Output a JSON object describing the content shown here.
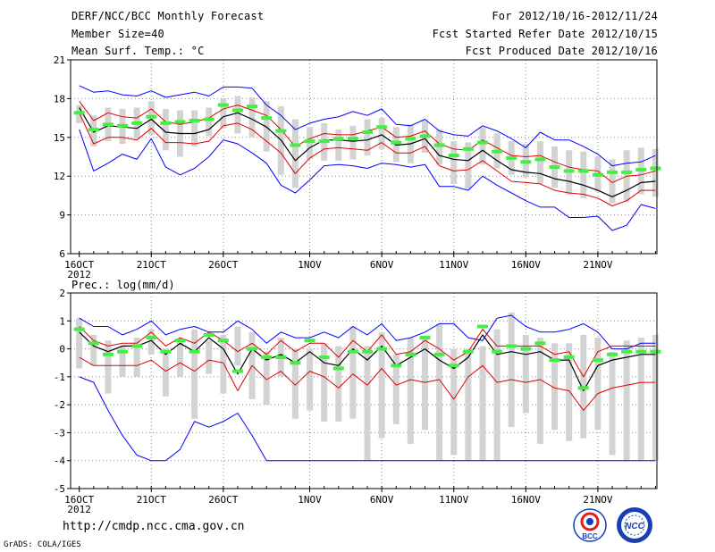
{
  "header": {
    "title": "DERF/NCC/BCC Monthly Forecast",
    "member_size": "Member Size=40",
    "variable": "Mean Surf. Temp.: °C",
    "period": "For 2012/10/16-2012/11/24",
    "start_date": "Fcst Started Refer Date 2012/10/15",
    "produced_date": "Fcst Produced Date 2012/10/16"
  },
  "footer": {
    "url": "http://cmdp.ncc.cma.gov.cn",
    "credit": "GrADS: COLA/IGES",
    "logo_left": "BCC",
    "logo_right": "NCC"
  },
  "colors": {
    "box": "#d3d3d3",
    "median": "#44ee44",
    "mean": "#000000",
    "std": "#e00000",
    "envelope": "#0000ff",
    "grid": "#888888"
  },
  "chart_data": [
    {
      "type": "box",
      "title": "Mean Surf. Temp.: °C",
      "ylabel": "°C",
      "ylim": [
        6,
        21
      ],
      "yticks": [
        6,
        9,
        12,
        15,
        18,
        21
      ],
      "xticks": [
        {
          "day": 0,
          "label": "16OCT"
        },
        {
          "day": 5,
          "label": "21OCT"
        },
        {
          "day": 10,
          "label": "26OCT"
        },
        {
          "day": 16,
          "label": "1NOV"
        },
        {
          "day": 21,
          "label": "6NOV"
        },
        {
          "day": 26,
          "label": "11NOV"
        },
        {
          "day": 31,
          "label": "16NOV"
        },
        {
          "day": 36,
          "label": "21NOV"
        }
      ],
      "year_label": "2012",
      "xlim": [
        -0.6,
        40.1
      ],
      "max": [
        19.0,
        18.5,
        18.6,
        18.3,
        18.2,
        18.6,
        18.1,
        18.3,
        18.5,
        18.2,
        18.9,
        18.9,
        18.8,
        17.5,
        16.7,
        15.6,
        16.1,
        16.4,
        16.6,
        17.0,
        16.7,
        17.2,
        16.0,
        15.9,
        16.4,
        15.5,
        15.2,
        15.1,
        15.9,
        15.5,
        14.9,
        14.2,
        15.4,
        14.8,
        14.8,
        14.3,
        13.7,
        12.8,
        13.0,
        13.1,
        13.6
      ],
      "p90": [
        17.5,
        16.7,
        17.3,
        17.2,
        17.3,
        17.8,
        17.2,
        17.1,
        17.1,
        17.3,
        18.0,
        18.2,
        18.1,
        17.8,
        17.4,
        16.4,
        15.8,
        16.1,
        15.6,
        15.9,
        16.4,
        16.5,
        15.8,
        16.0,
        16.3,
        15.6,
        14.7,
        14.6,
        15.8,
        15.3,
        14.7,
        14.5,
        14.7,
        14.3,
        14.0,
        13.9,
        13.5,
        13.3,
        14.0,
        14.2,
        14.1
      ],
      "p10": [
        16.1,
        14.3,
        14.7,
        14.5,
        14.9,
        15.2,
        14.0,
        13.5,
        14.3,
        15.1,
        15.7,
        15.3,
        15.0,
        13.9,
        12.1,
        11.1,
        13.3,
        13.2,
        13.2,
        13.3,
        13.6,
        14.1,
        13.1,
        13.0,
        13.8,
        12.9,
        11.4,
        11.0,
        12.9,
        12.6,
        12.1,
        11.9,
        11.4,
        11.1,
        10.6,
        10.3,
        10.8,
        9.9,
        10.0,
        10.6,
        10.4
      ],
      "p50": [
        16.9,
        15.6,
        16.0,
        15.9,
        16.1,
        16.6,
        16.1,
        16.2,
        16.3,
        16.4,
        17.5,
        17.1,
        17.4,
        16.5,
        15.5,
        14.4,
        14.7,
        14.7,
        14.9,
        14.9,
        15.4,
        15.8,
        14.6,
        14.9,
        15.1,
        14.4,
        13.6,
        14.1,
        14.6,
        13.9,
        13.4,
        13.1,
        13.3,
        12.7,
        12.4,
        12.4,
        12.1,
        12.3,
        12.3,
        12.5,
        12.6
      ],
      "plus_std": [
        17.8,
        16.3,
        16.9,
        16.6,
        16.5,
        17.2,
        16.2,
        16.0,
        16.2,
        16.5,
        17.2,
        17.5,
        17.1,
        16.7,
        15.6,
        14.3,
        14.9,
        15.3,
        15.2,
        15.2,
        15.5,
        15.8,
        15.0,
        15.1,
        15.5,
        14.5,
        14.1,
        14.0,
        14.8,
        14.2,
        13.6,
        13.5,
        13.6,
        13.1,
        12.7,
        12.5,
        12.4,
        11.5,
        12.0,
        12.1,
        12.4
      ],
      "mean": [
        17.3,
        15.4,
        15.9,
        15.8,
        15.7,
        16.4,
        15.4,
        15.3,
        15.3,
        15.6,
        16.6,
        16.9,
        16.4,
        15.8,
        14.8,
        13.2,
        14.2,
        14.8,
        14.8,
        14.7,
        14.8,
        15.2,
        14.4,
        14.5,
        14.9,
        13.6,
        13.3,
        13.2,
        14.0,
        13.2,
        12.5,
        12.3,
        12.2,
        11.8,
        11.6,
        11.3,
        10.9,
        10.4,
        10.9,
        11.5,
        11.6
      ],
      "minus_std": [
        16.9,
        14.5,
        15.0,
        15.0,
        14.8,
        15.7,
        14.6,
        14.6,
        14.5,
        14.7,
        15.9,
        16.1,
        15.6,
        14.7,
        13.8,
        12.2,
        13.4,
        14.1,
        14.2,
        14.1,
        14.0,
        14.6,
        13.8,
        13.8,
        14.3,
        12.8,
        12.4,
        12.5,
        13.2,
        12.4,
        11.6,
        11.5,
        11.4,
        10.9,
        10.7,
        10.6,
        10.3,
        9.7,
        10.1,
        10.9,
        10.9
      ],
      "min": [
        15.6,
        12.4,
        13.0,
        13.7,
        13.3,
        14.9,
        12.7,
        12.1,
        12.6,
        13.5,
        14.8,
        14.5,
        13.8,
        13.0,
        11.3,
        10.7,
        11.7,
        12.8,
        12.9,
        12.8,
        12.6,
        13.0,
        12.9,
        12.7,
        12.9,
        11.2,
        11.2,
        10.9,
        12.0,
        11.3,
        10.7,
        10.1,
        9.6,
        9.6,
        8.8,
        8.8,
        8.9,
        7.8,
        8.2,
        9.8,
        9.5
      ]
    },
    {
      "type": "box",
      "title": "Prec.: log(mm/d)",
      "ylabel": "log(mm/d)",
      "ylim": [
        -5,
        2
      ],
      "yticks": [
        -5,
        -4,
        -3,
        -2,
        -1,
        0,
        1,
        2
      ],
      "xticks": [
        {
          "day": 0,
          "label": "16OCT"
        },
        {
          "day": 5,
          "label": "21OCT"
        },
        {
          "day": 10,
          "label": "26OCT"
        },
        {
          "day": 16,
          "label": "1NOV"
        },
        {
          "day": 21,
          "label": "6NOV"
        },
        {
          "day": 26,
          "label": "11NOV"
        },
        {
          "day": 31,
          "label": "16NOV"
        },
        {
          "day": 36,
          "label": "21NOV"
        }
      ],
      "year_label": "2012",
      "xlim": [
        -0.6,
        40.1
      ],
      "max": [
        1.1,
        0.8,
        0.8,
        0.5,
        0.7,
        1.0,
        0.5,
        0.7,
        0.8,
        0.6,
        0.6,
        1.0,
        0.7,
        0.2,
        0.6,
        0.4,
        0.4,
        0.6,
        0.4,
        0.8,
        0.5,
        0.9,
        0.3,
        0.4,
        0.6,
        0.9,
        0.9,
        0.4,
        0.3,
        1.1,
        1.2,
        0.8,
        0.6,
        0.6,
        0.7,
        0.9,
        0.6,
        0.0,
        0.0,
        0.2,
        0.2
      ],
      "p90": [
        1.1,
        0.5,
        0.3,
        0.1,
        0.4,
        0.7,
        0.0,
        0.3,
        0.7,
        0.3,
        0.5,
        0.8,
        0.6,
        -0.1,
        0.4,
        0.0,
        0.0,
        0.2,
        0.1,
        0.8,
        0.1,
        0.6,
        -0.2,
        0.4,
        0.4,
        0.9,
        0.0,
        0.0,
        0.1,
        0.7,
        1.3,
        0.5,
        0.4,
        0.2,
        0.2,
        0.5,
        0.4,
        -0.1,
        0.3,
        0.4,
        0.5
      ],
      "p10": [
        -0.7,
        -0.6,
        -1.6,
        -1.0,
        -1.0,
        -0.2,
        -1.7,
        -1.0,
        -2.5,
        -0.9,
        -1.6,
        -0.6,
        -1.8,
        -2.0,
        -1.0,
        -2.5,
        -2.2,
        -2.6,
        -2.6,
        -2.5,
        -4.0,
        -3.2,
        -2.7,
        -3.4,
        -2.9,
        -4.0,
        -3.8,
        -4.0,
        -4.0,
        -4.0,
        -2.8,
        -2.3,
        -3.4,
        -2.9,
        -3.3,
        -3.2,
        -2.9,
        -3.8,
        -4.0,
        -4.0,
        -4.0
      ],
      "p50": [
        0.7,
        0.2,
        -0.2,
        -0.1,
        0.1,
        0.4,
        -0.1,
        0.3,
        -0.1,
        0.5,
        0.3,
        -0.8,
        0.0,
        -0.3,
        -0.3,
        -0.5,
        0.3,
        -0.3,
        -0.7,
        -0.1,
        -0.1,
        0.0,
        -0.6,
        -0.2,
        0.4,
        -0.2,
        -0.6,
        -0.1,
        0.8,
        -0.1,
        0.1,
        0.0,
        0.2,
        -0.4,
        -0.3,
        -1.4,
        -0.4,
        -0.2,
        -0.1,
        -0.1,
        -0.1
      ],
      "plus_std": [
        0.8,
        0.3,
        0.1,
        0.2,
        0.2,
        0.6,
        0.1,
        0.4,
        0.2,
        0.6,
        0.3,
        -0.1,
        0.2,
        -0.2,
        0.3,
        -0.1,
        0.2,
        0.2,
        -0.3,
        0.3,
        -0.1,
        0.5,
        -0.2,
        -0.1,
        0.3,
        0.0,
        -0.4,
        -0.1,
        0.7,
        0.1,
        0.1,
        0.1,
        0.1,
        -0.2,
        -0.1,
        -1.0,
        -0.1,
        0.1,
        0.1,
        0.1,
        0.1
      ],
      "mean": [
        0.6,
        0.1,
        -0.1,
        0.1,
        0.1,
        0.3,
        -0.2,
        0.2,
        -0.1,
        0.4,
        0.0,
        -0.9,
        0.0,
        -0.4,
        -0.2,
        -0.5,
        -0.1,
        -0.5,
        -0.6,
        0.0,
        -0.4,
        0.1,
        -0.6,
        -0.3,
        0.0,
        -0.4,
        -0.7,
        -0.3,
        0.5,
        -0.2,
        -0.1,
        -0.2,
        -0.1,
        -0.4,
        -0.4,
        -1.5,
        -0.6,
        -0.4,
        -0.3,
        -0.2,
        -0.2
      ],
      "minus_std": [
        -0.3,
        -0.6,
        -0.6,
        -0.6,
        -0.6,
        -0.4,
        -0.8,
        -0.5,
        -0.8,
        -0.4,
        -0.5,
        -1.5,
        -0.6,
        -1.1,
        -0.8,
        -1.3,
        -0.8,
        -1.0,
        -1.4,
        -0.9,
        -1.3,
        -0.7,
        -1.3,
        -1.1,
        -1.2,
        -1.1,
        -1.8,
        -1.0,
        -0.6,
        -1.2,
        -1.1,
        -1.2,
        -1.1,
        -1.4,
        -1.5,
        -2.2,
        -1.6,
        -1.4,
        -1.3,
        -1.2,
        -1.2
      ],
      "min": [
        -1.0,
        -1.2,
        -2.2,
        -3.1,
        -3.8,
        -4.0,
        -4.0,
        -3.6,
        -2.6,
        -2.8,
        -2.6,
        -2.3,
        -3.1,
        -4.0,
        -4.0,
        -4.0,
        -4.0,
        -4.0,
        -4.0,
        -4.0,
        -4.0,
        -4.0,
        -4.0,
        -4.0,
        -4.0,
        -4.0,
        -4.0,
        -4.0,
        -4.0,
        -4.0,
        -4.0,
        -4.0,
        -4.0,
        -4.0,
        -4.0,
        -4.0,
        -4.0,
        -4.0,
        -4.0,
        -4.0,
        -4.0
      ]
    }
  ]
}
